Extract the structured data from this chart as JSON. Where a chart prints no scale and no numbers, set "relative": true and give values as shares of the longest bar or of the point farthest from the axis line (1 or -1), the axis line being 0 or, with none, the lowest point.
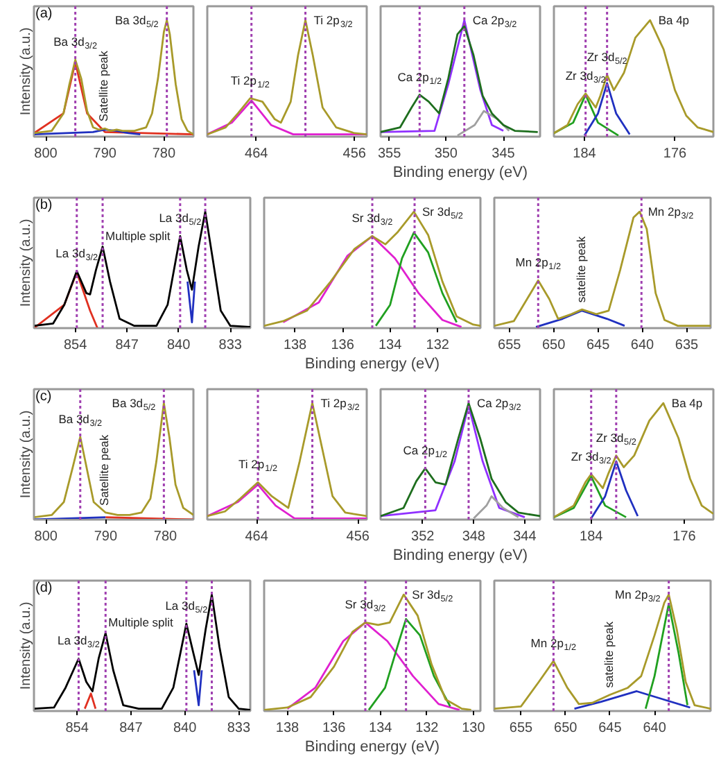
{
  "chart_data": [
    {
      "type": "line",
      "relative": true,
      "title": "(a)",
      "ylabel": "Intensity (a.u.)",
      "tick_labels": "x",
      "xlim": [
        802,
        775
      ],
      "xticks": [
        800,
        790,
        780
      ],
      "series": [
        {
          "color": "#e03020",
          "x": [
            802,
            797,
            795,
            793,
            790,
            775
          ],
          "values": [
            0.03,
            0.2,
            0.64,
            0.2,
            0.04,
            0.02
          ]
        },
        {
          "color": "#2030c0",
          "x": [
            802,
            792,
            790,
            788,
            786,
            784
          ],
          "values": [
            0.02,
            0.04,
            0.06,
            0.05,
            0.03,
            0.02
          ]
        },
        {
          "color": "#a89a2a",
          "x": [
            802,
            799,
            797,
            796,
            795,
            794,
            793,
            792,
            791,
            790,
            789,
            788,
            787,
            785,
            783,
            782,
            781,
            780,
            779.5,
            779,
            778,
            777,
            776,
            775
          ],
          "values": [
            0.03,
            0.05,
            0.2,
            0.45,
            0.66,
            0.5,
            0.22,
            0.08,
            0.06,
            0.07,
            0.05,
            0.06,
            0.05,
            0.05,
            0.08,
            0.2,
            0.5,
            0.9,
            1.0,
            0.88,
            0.45,
            0.15,
            0.05,
            0.02
          ]
        }
      ],
      "ref_lines": [
        {
          "axis": "x",
          "value": 795,
          "color": "#a040b0",
          "line_style": "dotted"
        },
        {
          "axis": "x",
          "value": 779.5,
          "color": "#a040b0",
          "line_style": "dotted"
        }
      ],
      "annotations": [
        {
          "text": "Ba 3d$_{3/2}$",
          "x": 795,
          "y": 0.66
        },
        {
          "text": "Satellite peak",
          "x": 790,
          "y": 0.07
        },
        {
          "text": "Ba 3d$_{5/2}$",
          "x": 779.5,
          "y": 1.0
        }
      ]
    },
    {
      "type": "line",
      "relative": true,
      "tick_labels": "x",
      "xlim": [
        468,
        455
      ],
      "xticks": [
        464,
        456
      ],
      "series": [
        {
          "color": "#e020d0",
          "x": [
            468,
            466,
            464.4,
            462.8,
            461,
            455
          ],
          "values": [
            0.02,
            0.12,
            0.31,
            0.1,
            0.02,
            0.02
          ]
        },
        {
          "color": "#a89a2a",
          "x": [
            468,
            466.5,
            465.5,
            464.5,
            463.5,
            462.5,
            462,
            461.2,
            460.6,
            460,
            459.4,
            458.6,
            457.5,
            456,
            455
          ],
          "values": [
            0.02,
            0.08,
            0.2,
            0.33,
            0.3,
            0.15,
            0.12,
            0.3,
            0.7,
            1.0,
            0.7,
            0.25,
            0.08,
            0.03,
            0.02
          ]
        }
      ],
      "ref_lines": [
        {
          "axis": "x",
          "value": 464.4,
          "color": "#a040b0",
          "line_style": "dotted"
        },
        {
          "axis": "x",
          "value": 460,
          "color": "#a040b0",
          "line_style": "dotted"
        }
      ],
      "annotations": [
        {
          "text": "Ti 2p$_{1/2}$",
          "x": 464.5,
          "y": 0.33
        },
        {
          "text": "Ti 2p$_{3/2}$",
          "x": 460,
          "y": 1.0
        }
      ]
    },
    {
      "type": "line",
      "relative": true,
      "tick_labels": "x",
      "xlabel": "Binding energy (eV)",
      "xlim": [
        355.7,
        341.8
      ],
      "xticks": [
        355,
        350,
        345
      ],
      "series": [
        {
          "color": "#9030ff",
          "x": [
            355.7,
            351,
            349.8,
            348.4,
            347,
            346,
            345
          ],
          "values": [
            0.04,
            0.05,
            0.45,
            1.0,
            0.4,
            0.1,
            0.05
          ]
        },
        {
          "color": "#a0a0a0",
          "x": [
            349,
            347.5,
            346.7,
            345.5,
            344.5
          ],
          "values": [
            0.01,
            0.1,
            0.22,
            0.15,
            0.05
          ]
        },
        {
          "color": "#1e6e1e",
          "x": [
            355.7,
            354,
            353,
            352.3,
            351.5,
            350.6,
            349.8,
            349,
            348.4,
            347.6,
            346.8,
            346,
            345,
            344,
            342
          ],
          "values": [
            0.04,
            0.08,
            0.25,
            0.36,
            0.3,
            0.2,
            0.5,
            0.88,
            0.95,
            0.7,
            0.35,
            0.2,
            0.1,
            0.05,
            0.04
          ]
        }
      ],
      "ref_lines": [
        {
          "axis": "x",
          "value": 352.3,
          "color": "#a040b0",
          "line_style": "dotted"
        },
        {
          "axis": "x",
          "value": 348.4,
          "color": "#a040b0",
          "line_style": "dotted"
        }
      ],
      "annotations": [
        {
          "text": "Ca 2p$_{1/2}$",
          "x": 352.3,
          "y": 0.36
        },
        {
          "text": "Ca 2p$_{3/2}$",
          "x": 348.4,
          "y": 1.0
        }
      ]
    },
    {
      "type": "line",
      "relative": true,
      "tick_labels": "x",
      "xlim": [
        186.7,
        172.6
      ],
      "xticks": [
        184,
        176
      ],
      "series": [
        {
          "color": "#20a020",
          "x": [
            186.7,
            185,
            183.9,
            182.8,
            181
          ],
          "values": [
            0.03,
            0.12,
            0.36,
            0.12,
            0.01
          ]
        },
        {
          "color": "#2030c0",
          "x": [
            184,
            182.8,
            182,
            181.2,
            180
          ],
          "values": [
            0.01,
            0.2,
            0.46,
            0.2,
            0.02
          ]
        },
        {
          "color": "#a89a2a",
          "x": [
            186.7,
            185.5,
            184.6,
            183.9,
            183,
            182.6,
            182,
            181.4,
            180.5,
            179.5,
            178.2,
            177,
            176,
            175,
            174,
            172.6
          ],
          "values": [
            0.03,
            0.1,
            0.28,
            0.37,
            0.25,
            0.35,
            0.53,
            0.4,
            0.55,
            0.85,
            1.0,
            0.75,
            0.4,
            0.18,
            0.08,
            0.04
          ]
        }
      ],
      "ref_lines": [
        {
          "axis": "x",
          "value": 183.9,
          "color": "#a040b0",
          "line_style": "dotted"
        },
        {
          "axis": "x",
          "value": 182,
          "color": "#a040b0",
          "line_style": "dotted"
        }
      ],
      "annotations": [
        {
          "text": "Zr 3d$_{3/2}$",
          "x": 183.9,
          "y": 0.37
        },
        {
          "text": "Zr 3d$_{5/2}$",
          "x": 182,
          "y": 0.53
        },
        {
          "text": "Ba 4p",
          "x": 178.2,
          "y": 1.0
        }
      ]
    },
    {
      "type": "line",
      "relative": true,
      "title": "(b)",
      "ylabel": "Intensity (a.u.)",
      "tick_labels": "x",
      "xlim": [
        859.6,
        830.3
      ],
      "xticks": [
        854,
        847,
        840,
        833
      ],
      "series": [
        {
          "color": "#e03020",
          "x": [
            859.6,
            855.5,
            853.8,
            852,
            851
          ],
          "values": [
            0.0,
            0.2,
            0.48,
            0.15,
            0.0
          ]
        },
        {
          "color": "#2030c0",
          "x": [
            838.8,
            838.2,
            837.8
          ],
          "values": [
            0.4,
            0.05,
            0.4
          ]
        },
        {
          "color": "#000000",
          "x": [
            859.6,
            857,
            855.5,
            853.8,
            852.5,
            852,
            851.2,
            850.3,
            849.3,
            848,
            846,
            843,
            841.5,
            839.8,
            838.9,
            838.2,
            837.3,
            836.4,
            835.4,
            834.3,
            833,
            830.3
          ],
          "values": [
            0.02,
            0.04,
            0.2,
            0.49,
            0.3,
            0.29,
            0.5,
            0.7,
            0.4,
            0.08,
            0.02,
            0.02,
            0.2,
            0.79,
            0.5,
            0.33,
            0.7,
            1.0,
            0.6,
            0.15,
            0.02,
            0.01
          ]
        }
      ],
      "ref_lines": [
        {
          "axis": "x",
          "value": 853.8,
          "color": "#a040b0",
          "line_style": "dotted"
        },
        {
          "axis": "x",
          "value": 850.3,
          "color": "#a040b0",
          "line_style": "dotted"
        },
        {
          "axis": "x",
          "value": 839.8,
          "color": "#a040b0",
          "line_style": "dotted"
        },
        {
          "axis": "x",
          "value": 836.4,
          "color": "#a040b0",
          "line_style": "dotted"
        }
      ],
      "annotations": [
        {
          "text": "La 3d$_{3/2}$",
          "x": 853.8,
          "y": 0.49
        },
        {
          "text": "Multiple split",
          "x": 850.3,
          "y": 0.7
        },
        {
          "text": "La 3d$_{5/2}$",
          "x": 839.8,
          "y": 0.79
        }
      ]
    },
    {
      "type": "line",
      "relative": true,
      "tick_labels": "x",
      "xlabel": "Binding energy (eV)",
      "xlim": [
        139.3,
        130.2
      ],
      "xticks": [
        138,
        136,
        134,
        132
      ],
      "series": [
        {
          "color": "#e020d0",
          "x": [
            138.5,
            137,
            135.8,
            134.75,
            133.8,
            132.8,
            131.8,
            131
          ],
          "values": [
            0.05,
            0.22,
            0.62,
            0.79,
            0.6,
            0.3,
            0.07,
            0.01
          ]
        },
        {
          "color": "#20a020",
          "x": [
            134.6,
            134,
            133.5,
            133,
            132.4,
            131.8,
            131.2
          ],
          "values": [
            0.02,
            0.2,
            0.6,
            0.82,
            0.65,
            0.3,
            0.05
          ]
        },
        {
          "color": "#a89a2a",
          "x": [
            139.3,
            138.5,
            137.5,
            136.5,
            135.5,
            134.75,
            134.2,
            133.7,
            133,
            132.4,
            131.8,
            131.2,
            130.5,
            130.2
          ],
          "values": [
            0.02,
            0.06,
            0.15,
            0.4,
            0.68,
            0.79,
            0.72,
            0.82,
            1.0,
            0.8,
            0.4,
            0.1,
            0.03,
            0.02
          ]
        }
      ],
      "ref_lines": [
        {
          "axis": "x",
          "value": 134.75,
          "color": "#a040b0",
          "line_style": "dotted"
        },
        {
          "axis": "x",
          "value": 132.97,
          "color": "#a040b0",
          "line_style": "dotted"
        }
      ],
      "annotations": [
        {
          "text": "Sr 3d$_{3/2}$",
          "x": 134.75,
          "y": 0.79
        },
        {
          "text": "Sr 3d$_{5/2}$",
          "x": 133,
          "y": 1.0
        }
      ]
    },
    {
      "type": "line",
      "relative": true,
      "tick_labels": "x",
      "xlim": [
        656.7,
        632.3
      ],
      "xticks": [
        655,
        650,
        645,
        640,
        635
      ],
      "series": [
        {
          "color": "#2030c0",
          "x": [
            652,
            649,
            646.8,
            644,
            642
          ],
          "values": [
            0.01,
            0.08,
            0.15,
            0.08,
            0.02
          ]
        },
        {
          "color": "#a89a2a",
          "x": [
            656.7,
            654.5,
            653,
            651.75,
            650.5,
            649.5,
            648,
            646.8,
            645.2,
            643.8,
            642.5,
            641,
            640.3,
            639.5,
            638.5,
            637.5,
            636,
            632.3
          ],
          "values": [
            0.02,
            0.06,
            0.25,
            0.41,
            0.25,
            0.08,
            0.12,
            0.16,
            0.12,
            0.15,
            0.5,
            0.95,
            1.0,
            0.85,
            0.3,
            0.07,
            0.02,
            0.02
          ]
        }
      ],
      "ref_lines": [
        {
          "axis": "x",
          "value": 651.75,
          "color": "#a040b0",
          "line_style": "dotted"
        },
        {
          "axis": "x",
          "value": 640.1,
          "color": "#a040b0",
          "line_style": "dotted"
        }
      ],
      "annotations": [
        {
          "text": "Mn 2p$_{1/2}$",
          "x": 651.75,
          "y": 0.41
        },
        {
          "text": "satelite peak",
          "x": 646.8,
          "y": 0.16
        },
        {
          "text": "Mn 2p$_{3/2}$",
          "x": 640.3,
          "y": 1.0
        }
      ]
    },
    {
      "type": "line",
      "relative": true,
      "title": "(c)",
      "ylabel": "Intensity (a.u.)",
      "tick_labels": "x",
      "xlim": [
        802,
        775.3
      ],
      "xticks": [
        800,
        790,
        780
      ],
      "series": [
        {
          "color": "#2030c0",
          "x": [
            802,
            790
          ],
          "values": [
            0.0,
            0.02
          ]
        },
        {
          "color": "#e03020",
          "x": [
            790,
            775.3
          ],
          "values": [
            0.02,
            0.0
          ]
        },
        {
          "color": "#a89a2a",
          "x": [
            802,
            799,
            797,
            795.5,
            794.25,
            793.2,
            792,
            790,
            788,
            786,
            784,
            782.5,
            781.5,
            780.25,
            779.3,
            778.3,
            777,
            775.3
          ],
          "values": [
            0.02,
            0.04,
            0.15,
            0.45,
            0.71,
            0.45,
            0.15,
            0.06,
            0.04,
            0.04,
            0.06,
            0.18,
            0.5,
            1.0,
            0.7,
            0.3,
            0.1,
            0.04
          ]
        }
      ],
      "ref_lines": [
        {
          "axis": "x",
          "value": 794.25,
          "color": "#a040b0",
          "line_style": "dotted"
        },
        {
          "axis": "x",
          "value": 780.25,
          "color": "#a040b0",
          "line_style": "dotted"
        }
      ],
      "annotations": [
        {
          "text": "Ba 3d$_{3/2}$",
          "x": 794.25,
          "y": 0.71
        },
        {
          "text": "Satellite peak",
          "x": 790,
          "y": 0.06
        },
        {
          "text": "Ba 3d$_{5/2}$",
          "x": 780.25,
          "y": 1.0
        }
      ]
    },
    {
      "type": "line",
      "relative": true,
      "tick_labels": "x",
      "xlim": [
        467.9,
        455.3
      ],
      "xticks": [
        464,
        456
      ],
      "series": [
        {
          "color": "#e020d0",
          "x": [
            467.9,
            465.5,
            463.9,
            462.5,
            461,
            455.3
          ],
          "values": [
            0.03,
            0.15,
            0.3,
            0.12,
            0.01,
            0.01
          ]
        },
        {
          "color": "#a89a2a",
          "x": [
            467.9,
            466.5,
            465.3,
            463.9,
            462.8,
            461.5,
            460.6,
            459.6,
            458.8,
            458,
            457,
            455.3
          ],
          "values": [
            0.03,
            0.07,
            0.18,
            0.32,
            0.2,
            0.1,
            0.5,
            1.0,
            0.6,
            0.2,
            0.06,
            0.03
          ]
        }
      ],
      "ref_lines": [
        {
          "axis": "x",
          "value": 463.9,
          "color": "#a040b0",
          "line_style": "dotted"
        },
        {
          "axis": "x",
          "value": 459.6,
          "color": "#a040b0",
          "line_style": "dotted"
        }
      ],
      "annotations": [
        {
          "text": "Ti 2p$_{1/2}$",
          "x": 463.9,
          "y": 0.32
        },
        {
          "text": "Ti 2p$_{3/2}$",
          "x": 459.6,
          "y": 1.0
        }
      ]
    },
    {
      "type": "line",
      "relative": true,
      "tick_labels": "x",
      "xlabel": "Binding energy (eV)",
      "xlim": [
        355.3,
        342.8
      ],
      "xticks": [
        352,
        348,
        344
      ],
      "series": [
        {
          "color": "#9030ff",
          "x": [
            355.3,
            351,
            349.5,
            348.4,
            347.3,
            346,
            344
          ],
          "values": [
            0.03,
            0.08,
            0.5,
            0.98,
            0.5,
            0.1,
            0.02
          ]
        },
        {
          "color": "#a0a0a0",
          "x": [
            348,
            347,
            346.6,
            345.7,
            344.5
          ],
          "values": [
            0.01,
            0.12,
            0.2,
            0.1,
            0.02
          ]
        },
        {
          "color": "#1e6e1e",
          "x": [
            355.3,
            353.5,
            352.5,
            351.8,
            351,
            350.2,
            349.2,
            348.4,
            347.5,
            346.6,
            345.5,
            344.5,
            342.8
          ],
          "values": [
            0.03,
            0.1,
            0.33,
            0.44,
            0.32,
            0.3,
            0.7,
            1.0,
            0.7,
            0.35,
            0.15,
            0.06,
            0.03
          ]
        }
      ],
      "ref_lines": [
        {
          "axis": "x",
          "value": 351.8,
          "color": "#a040b0",
          "line_style": "dotted"
        },
        {
          "axis": "x",
          "value": 348.4,
          "color": "#a040b0",
          "line_style": "dotted"
        }
      ],
      "annotations": [
        {
          "text": "Ca 2p$_{1/2}$",
          "x": 351.8,
          "y": 0.44
        },
        {
          "text": "Ca 2p$_{3/2}$",
          "x": 348.4,
          "y": 1.0
        }
      ]
    },
    {
      "type": "line",
      "relative": true,
      "tick_labels": "x",
      "xlim": [
        187.2,
        173.5
      ],
      "xticks": [
        184,
        176
      ],
      "series": [
        {
          "color": "#20a020",
          "x": [
            187.2,
            185.5,
            184,
            182.8,
            181
          ],
          "values": [
            0.02,
            0.1,
            0.37,
            0.12,
            0.02
          ]
        },
        {
          "color": "#2030c0",
          "x": [
            184,
            182.8,
            181.85,
            181,
            180
          ],
          "values": [
            0.01,
            0.2,
            0.5,
            0.25,
            0.03
          ]
        },
        {
          "color": "#a89a2a",
          "x": [
            187.2,
            185.5,
            184.5,
            184,
            183,
            182.5,
            181.85,
            181.2,
            180.3,
            179,
            177.8,
            176.5,
            175.5,
            174.5,
            173.5
          ],
          "values": [
            0.02,
            0.12,
            0.32,
            0.39,
            0.27,
            0.4,
            0.55,
            0.45,
            0.55,
            0.85,
            1.0,
            0.7,
            0.35,
            0.12,
            0.05
          ]
        }
      ],
      "ref_lines": [
        {
          "axis": "x",
          "value": 184,
          "color": "#a040b0",
          "line_style": "dotted"
        },
        {
          "axis": "x",
          "value": 181.85,
          "color": "#a040b0",
          "line_style": "dotted"
        }
      ],
      "annotations": [
        {
          "text": "Zr 3d$_{3/2}$",
          "x": 184,
          "y": 0.39
        },
        {
          "text": "Zr 3d$_{5/2}$",
          "x": 181.85,
          "y": 0.55
        },
        {
          "text": "Ba 4p",
          "x": 177.8,
          "y": 1.0
        }
      ]
    },
    {
      "type": "line",
      "relative": true,
      "title": "(d)",
      "ylabel": "Intensity (a.u.)",
      "tick_labels": "x",
      "xlim": [
        859.6,
        831.5
      ],
      "xticks": [
        854,
        847,
        840,
        833
      ],
      "series": [
        {
          "color": "#e03020",
          "x": [
            853,
            852.2,
            851.6
          ],
          "values": [
            0.02,
            0.15,
            0.02
          ]
        },
        {
          "color": "#2030c0",
          "x": [
            838.8,
            838.2,
            837.8
          ],
          "values": [
            0.35,
            0.05,
            0.35
          ]
        },
        {
          "color": "#000000",
          "x": [
            859.6,
            857,
            855.5,
            853.8,
            852.8,
            852,
            851.2,
            850.3,
            849.3,
            848,
            846,
            843,
            841.5,
            839.8,
            838.9,
            838.2,
            837.3,
            836.5,
            835.5,
            834.3,
            833,
            831.5
          ],
          "values": [
            0.02,
            0.03,
            0.2,
            0.45,
            0.25,
            0.17,
            0.45,
            0.67,
            0.35,
            0.05,
            0.02,
            0.02,
            0.2,
            0.75,
            0.5,
            0.31,
            0.7,
            1.0,
            0.55,
            0.12,
            0.02,
            0.01
          ]
        }
      ],
      "ref_lines": [
        {
          "axis": "x",
          "value": 853.8,
          "color": "#a040b0",
          "line_style": "dotted"
        },
        {
          "axis": "x",
          "value": 850.3,
          "color": "#a040b0",
          "line_style": "dotted"
        },
        {
          "axis": "x",
          "value": 839.8,
          "color": "#a040b0",
          "line_style": "dotted"
        },
        {
          "axis": "x",
          "value": 836.5,
          "color": "#a040b0",
          "line_style": "dotted"
        }
      ],
      "annotations": [
        {
          "text": "La 3d$_{3/2}$",
          "x": 853.8,
          "y": 0.45
        },
        {
          "text": "Multiple split",
          "x": 850.3,
          "y": 0.67
        },
        {
          "text": "La 3d$_{5/2}$",
          "x": 839.8,
          "y": 0.75
        }
      ]
    },
    {
      "type": "line",
      "relative": true,
      "tick_labels": "x",
      "xlabel": "Binding energy (eV)",
      "xlim": [
        139,
        129.7
      ],
      "xticks": [
        138,
        136,
        134,
        132,
        130
      ],
      "series": [
        {
          "color": "#e020d0",
          "x": [
            138,
            136.8,
            135.6,
            134.65,
            133.7,
            132.6,
            131.5,
            130.6
          ],
          "values": [
            0.02,
            0.2,
            0.6,
            0.76,
            0.6,
            0.3,
            0.06,
            0.01
          ]
        },
        {
          "color": "#20a020",
          "x": [
            134.5,
            133.8,
            133.2,
            132.9,
            132.3,
            131.7,
            131
          ],
          "values": [
            0.01,
            0.2,
            0.6,
            0.79,
            0.65,
            0.3,
            0.04
          ]
        },
        {
          "color": "#a89a2a",
          "x": [
            139,
            138,
            137,
            136,
            135.2,
            134.65,
            134.1,
            133.6,
            133,
            132.4,
            131.8,
            131.2,
            130.5,
            130.1
          ],
          "values": [
            0.01,
            0.03,
            0.12,
            0.38,
            0.68,
            0.76,
            0.74,
            0.76,
            1.0,
            0.82,
            0.4,
            0.1,
            0.02,
            0.01
          ]
        }
      ],
      "ref_lines": [
        {
          "axis": "x",
          "value": 134.65,
          "color": "#a040b0",
          "line_style": "dotted"
        },
        {
          "axis": "x",
          "value": 132.9,
          "color": "#a040b0",
          "line_style": "dotted"
        }
      ],
      "annotations": [
        {
          "text": "Sr 3d$_{3/2}$",
          "x": 134.65,
          "y": 0.76
        },
        {
          "text": "Sr 3d$_{5/2}$",
          "x": 133,
          "y": 1.0
        }
      ]
    },
    {
      "type": "line",
      "relative": true,
      "tick_labels": "x",
      "xlim": [
        658,
        633.7
      ],
      "xticks": [
        655,
        650,
        645,
        640
      ],
      "series": [
        {
          "color": "#2030c0",
          "x": [
            649,
            646,
            642,
            639,
            636
          ],
          "values": [
            0.02,
            0.08,
            0.17,
            0.1,
            0.03
          ]
        },
        {
          "color": "#20a020",
          "x": [
            641,
            640,
            638.4,
            637.3,
            636.3
          ],
          "values": [
            0.02,
            0.3,
            0.92,
            0.5,
            0.05
          ]
        },
        {
          "color": "#a89a2a",
          "x": [
            658,
            655,
            653,
            651.35,
            649.8,
            648.5,
            647,
            645,
            643,
            641.5,
            640,
            638.9,
            638.4,
            637.5,
            636.5,
            635.5,
            633.7
          ],
          "values": [
            0.02,
            0.04,
            0.25,
            0.43,
            0.2,
            0.06,
            0.07,
            0.14,
            0.2,
            0.3,
            0.65,
            0.93,
            1.0,
            0.7,
            0.25,
            0.05,
            0.02
          ]
        }
      ],
      "ref_lines": [
        {
          "axis": "x",
          "value": 651.35,
          "color": "#a040b0",
          "line_style": "dotted"
        },
        {
          "axis": "x",
          "value": 638.4,
          "color": "#a040b0",
          "line_style": "dotted"
        }
      ],
      "annotations": [
        {
          "text": "Mn 2p$_{1/2}$",
          "x": 651.35,
          "y": 0.43
        },
        {
          "text": "satelite peak",
          "x": 645,
          "y": 0.14
        },
        {
          "text": "Mn 2p$_{3/2}$",
          "x": 638.4,
          "y": 1.0
        }
      ]
    }
  ]
}
